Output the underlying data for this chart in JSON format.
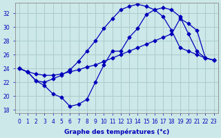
{
  "xlabel": "Graphe des températures (°c)",
  "bg_color": "#cce8e8",
  "grid_color": "#aacccc",
  "line_color": "#0000bb",
  "ylim": [
    17.5,
    33.5
  ],
  "xlim": [
    -0.5,
    23.5
  ],
  "yticks": [
    18,
    20,
    22,
    24,
    26,
    28,
    30,
    32
  ],
  "xticks": [
    0,
    1,
    2,
    3,
    4,
    5,
    6,
    7,
    8,
    9,
    10,
    11,
    12,
    13,
    14,
    15,
    16,
    17,
    18,
    19,
    20,
    21,
    22,
    23
  ],
  "line1_x": [
    0,
    1,
    2,
    3,
    4,
    5,
    6,
    7,
    8,
    9,
    10,
    11,
    12,
    13,
    14,
    15,
    16,
    17,
    18,
    19,
    20,
    21,
    22,
    23
  ],
  "line1_y": [
    24.0,
    23.5,
    22.2,
    22.0,
    22.5,
    23.0,
    23.8,
    25.0,
    26.5,
    28.0,
    29.8,
    31.2,
    32.5,
    33.0,
    33.3,
    33.0,
    32.5,
    31.5,
    29.5,
    27.0,
    26.5,
    26.0,
    25.5,
    25.2
  ],
  "line2_x": [
    0,
    1,
    2,
    3,
    4,
    5,
    6,
    7,
    8,
    9,
    10,
    11,
    12,
    13,
    14,
    15,
    16,
    17,
    18,
    19,
    20,
    21,
    22,
    23
  ],
  "line2_y": [
    24.0,
    23.5,
    23.2,
    23.0,
    23.0,
    23.2,
    23.5,
    23.8,
    24.2,
    24.5,
    25.0,
    25.5,
    26.0,
    26.5,
    27.0,
    27.5,
    28.0,
    28.5,
    29.0,
    31.2,
    30.5,
    29.5,
    25.5,
    25.2
  ],
  "line3_x": [
    0,
    1,
    2,
    3,
    4,
    5,
    6,
    7,
    8,
    9,
    10,
    11,
    12,
    13,
    14,
    15,
    16,
    17,
    18,
    19,
    20,
    21,
    22,
    23
  ],
  "line3_y": [
    24.0,
    23.5,
    22.2,
    21.5,
    20.3,
    19.8,
    18.5,
    18.8,
    19.5,
    22.0,
    24.5,
    26.5,
    26.5,
    28.5,
    29.8,
    31.8,
    32.5,
    32.8,
    32.5,
    31.5,
    29.0,
    26.5,
    25.5,
    25.2
  ]
}
